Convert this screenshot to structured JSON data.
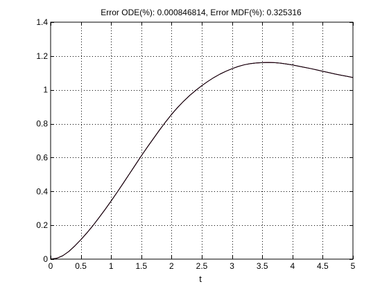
{
  "chart_data": {
    "type": "line",
    "title": "Error ODE(%): 0.000846814, Error MDF(%): 0.325316",
    "xlabel": "t",
    "ylabel": "",
    "xlim": [
      0,
      5
    ],
    "ylim": [
      0,
      1.4
    ],
    "xticks": [
      0,
      0.5,
      1,
      1.5,
      2,
      2.5,
      3,
      3.5,
      4,
      4.5,
      5
    ],
    "xtick_labels": [
      "0",
      "0.5",
      "1",
      "1.5",
      "2",
      "2.5",
      "3",
      "3.5",
      "4",
      "4.5",
      "5"
    ],
    "yticks": [
      0,
      0.2,
      0.4,
      0.6,
      0.8,
      1,
      1.2,
      1.4
    ],
    "ytick_labels": [
      "0",
      "0.2",
      "0.4",
      "0.6",
      "0.8",
      "1",
      "1.2",
      "1.4"
    ],
    "grid": "dotted",
    "series": [
      {
        "color": "#0000cc",
        "x": [
          0,
          0.1,
          0.2,
          0.3,
          0.4,
          0.5,
          0.6,
          0.7,
          0.8,
          0.9,
          1.0,
          1.1,
          1.2,
          1.3,
          1.4,
          1.5,
          1.6,
          1.7,
          1.8,
          1.9,
          2.0,
          2.1,
          2.2,
          2.3,
          2.4,
          2.5,
          2.6,
          2.7,
          2.8,
          2.9,
          3.0,
          3.1,
          3.2,
          3.3,
          3.4,
          3.5,
          3.6,
          3.7,
          3.8,
          3.9,
          4.0,
          4.1,
          4.2,
          4.3,
          4.4,
          4.5,
          4.6,
          4.7,
          4.8,
          4.9,
          5.0
        ],
        "y": [
          0,
          0.005,
          0.02,
          0.045,
          0.078,
          0.115,
          0.155,
          0.198,
          0.245,
          0.293,
          0.343,
          0.395,
          0.448,
          0.502,
          0.556,
          0.61,
          0.662,
          0.712,
          0.762,
          0.81,
          0.855,
          0.896,
          0.933,
          0.967,
          0.997,
          1.025,
          1.05,
          1.073,
          1.093,
          1.11,
          1.125,
          1.138,
          1.148,
          1.155,
          1.159,
          1.161,
          1.162,
          1.161,
          1.158,
          1.153,
          1.147,
          1.14,
          1.133,
          1.126,
          1.118,
          1.11,
          1.102,
          1.094,
          1.087,
          1.08,
          1.073
        ]
      },
      {
        "color": "#cc0000",
        "x": [
          0,
          0.1,
          0.2,
          0.3,
          0.4,
          0.5,
          0.6,
          0.7,
          0.8,
          0.9,
          1.0,
          1.1,
          1.2,
          1.3,
          1.4,
          1.5,
          1.6,
          1.7,
          1.8,
          1.9,
          2.0,
          2.1,
          2.2,
          2.3,
          2.4,
          2.5,
          2.6,
          2.7,
          2.8,
          2.9,
          3.0,
          3.1,
          3.2,
          3.3,
          3.4,
          3.5,
          3.6,
          3.7,
          3.8,
          3.9,
          4.0,
          4.1,
          4.2,
          4.3,
          4.4,
          4.5,
          4.6,
          4.7,
          4.8,
          4.9,
          5.0
        ],
        "y": [
          0,
          0.005,
          0.02,
          0.045,
          0.078,
          0.115,
          0.155,
          0.198,
          0.245,
          0.293,
          0.343,
          0.395,
          0.448,
          0.502,
          0.556,
          0.61,
          0.662,
          0.712,
          0.762,
          0.81,
          0.855,
          0.896,
          0.933,
          0.967,
          0.997,
          1.025,
          1.05,
          1.073,
          1.093,
          1.11,
          1.125,
          1.138,
          1.148,
          1.155,
          1.159,
          1.161,
          1.162,
          1.161,
          1.158,
          1.153,
          1.147,
          1.14,
          1.133,
          1.126,
          1.118,
          1.11,
          1.102,
          1.094,
          1.087,
          1.08,
          1.073
        ]
      },
      {
        "color": "#000000",
        "x": [
          0,
          0.1,
          0.2,
          0.3,
          0.4,
          0.5,
          0.6,
          0.7,
          0.8,
          0.9,
          1.0,
          1.1,
          1.2,
          1.3,
          1.4,
          1.5,
          1.6,
          1.7,
          1.8,
          1.9,
          2.0,
          2.1,
          2.2,
          2.3,
          2.4,
          2.5,
          2.6,
          2.7,
          2.8,
          2.9,
          3.0,
          3.1,
          3.2,
          3.3,
          3.4,
          3.5,
          3.6,
          3.7,
          3.8,
          3.9,
          4.0,
          4.1,
          4.2,
          4.3,
          4.4,
          4.5,
          4.6,
          4.7,
          4.8,
          4.9,
          5.0
        ],
        "y": [
          0,
          0.005,
          0.02,
          0.045,
          0.078,
          0.115,
          0.155,
          0.198,
          0.245,
          0.293,
          0.343,
          0.395,
          0.448,
          0.502,
          0.556,
          0.61,
          0.662,
          0.712,
          0.762,
          0.81,
          0.855,
          0.896,
          0.933,
          0.967,
          0.997,
          1.025,
          1.05,
          1.073,
          1.093,
          1.11,
          1.125,
          1.138,
          1.148,
          1.155,
          1.159,
          1.161,
          1.162,
          1.161,
          1.158,
          1.153,
          1.147,
          1.14,
          1.133,
          1.126,
          1.118,
          1.11,
          1.102,
          1.094,
          1.087,
          1.08,
          1.073
        ]
      }
    ]
  }
}
